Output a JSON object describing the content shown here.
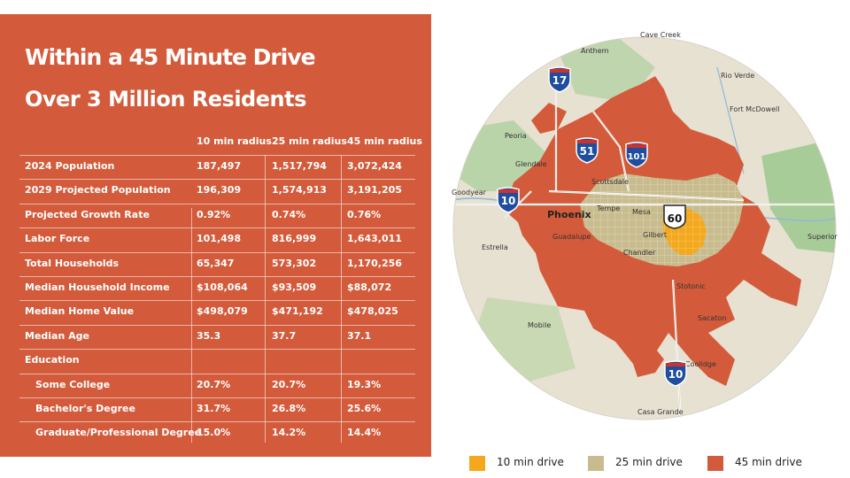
{
  "heading": {
    "title": "Within a 45 Minute Drive",
    "subtitle": "Over 3 Million Residents"
  },
  "table": {
    "columns": [
      "10 min radius",
      "25 min radius",
      "45 min radius"
    ],
    "rows": [
      {
        "label": "2024 Population",
        "values": [
          "187,497",
          "1,517,794",
          "3,072,424"
        ]
      },
      {
        "label": "2029 Projected Population",
        "values": [
          "196,309",
          "1,574,913",
          "3,191,205"
        ]
      },
      {
        "label": "Projected Growth Rate",
        "values": [
          "0.92%",
          "0.74%",
          "0.76%"
        ]
      },
      {
        "label": "Labor Force",
        "values": [
          "101,498",
          "816,999",
          "1,643,011"
        ]
      },
      {
        "label": "Total Households",
        "values": [
          "65,347",
          "573,302",
          "1,170,256"
        ]
      },
      {
        "label": "Median Household Income",
        "values": [
          "$108,064",
          "$93,509",
          "$88,072"
        ]
      },
      {
        "label": "Median Home Value",
        "values": [
          "$498,079",
          "$471,192",
          "$478,025"
        ]
      },
      {
        "label": "Median Age",
        "values": [
          "35.3",
          "37.7",
          "37.1"
        ]
      },
      {
        "label": "Education",
        "values": [
          "",
          "",
          ""
        ]
      },
      {
        "label": "Some College",
        "values": [
          "20.7%",
          "20.7%",
          "19.3%"
        ],
        "indent": true
      },
      {
        "label": "Bachelor's Degree",
        "values": [
          "31.7%",
          "26.8%",
          "25.6%"
        ],
        "indent": true
      },
      {
        "label": "Graduate/Professional Degree",
        "values": [
          "15.0%",
          "14.2%",
          "14.4%"
        ],
        "indent": true
      }
    ]
  },
  "map": {
    "places": [
      "Cave Creek",
      "Anthem",
      "Rio Verde",
      "Fort McDowell",
      "Peoria",
      "Glendale",
      "Scottsdale",
      "Goodyear",
      "Phoenix",
      "Tempe",
      "Mesa",
      "Gilbert",
      "Guadalupe",
      "Chandler",
      "Estrella",
      "Superior",
      "Stotonic",
      "Sacaton",
      "Mobile",
      "Coolidge",
      "Casa Grande"
    ],
    "shields": {
      "i17": "17",
      "i51": "51",
      "i101": "101",
      "i10a": "10",
      "us60": "60",
      "i10b": "10"
    }
  },
  "legend": [
    {
      "label": "10 min drive",
      "color": "#F3A81E"
    },
    {
      "label": "25 min drive",
      "color": "#C8BC8E"
    },
    {
      "label": "45 min drive",
      "color": "#D35B3B"
    }
  ],
  "colors": {
    "panel": "#D35B3B",
    "map_bg": "#E7E1D1",
    "park": "#A8CC98",
    "water": "#8FB8D8"
  }
}
